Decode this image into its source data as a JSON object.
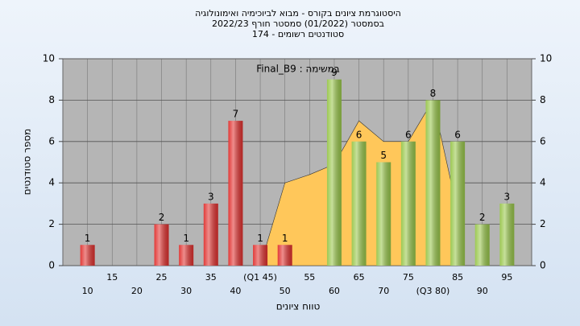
{
  "chart_data": {
    "type": "bar",
    "title": "היסטוגרמת ציונים בקורס - מבוא לביוכימיה ואימונולוגיה",
    "subtitle": "בסמסטר  (01/2022)  סמסטר חורף  2022/23",
    "subtitle2": "סטודנטים רשומים - 174",
    "annotation": "Final_B9 : במשימה",
    "x_label": "טווח ציונים",
    "y_label": "מספר סטודנטים",
    "categories": [
      "10",
      "15",
      "20",
      "25",
      "30",
      "35",
      "40",
      "(Q1 45)",
      "50",
      "55",
      "60",
      "65",
      "70",
      "75",
      "(Q3 80)",
      "85",
      "90",
      "95"
    ],
    "values": [
      1,
      0,
      0,
      2,
      1,
      3,
      7,
      1,
      1,
      0,
      9,
      6,
      5,
      6,
      8,
      6,
      2,
      3
    ],
    "colors": [
      "#e0302e",
      "#e0302e",
      "#e0302e",
      "#e0302e",
      "#e0302e",
      "#e0302e",
      "#e0302e",
      "#e0302e",
      "#e0302e",
      "#e0302e",
      "#98c64a",
      "#98c64a",
      "#98c64a",
      "#98c64a",
      "#98c64a",
      "#98c64a",
      "#98c64a",
      "#98c64a"
    ],
    "area": {
      "color": "#ffc75a",
      "values": [
        null,
        null,
        null,
        null,
        null,
        null,
        null,
        0,
        4,
        4.4,
        4.9,
        7,
        6,
        6,
        8,
        2.6,
        null,
        null
      ]
    },
    "ylim": [
      0,
      10
    ],
    "yticks": [
      0,
      2,
      4,
      6,
      8,
      10
    ],
    "y2lim": [
      0,
      10
    ],
    "y2ticks": [
      0,
      2,
      4,
      6,
      8,
      10
    ],
    "grid": true
  }
}
